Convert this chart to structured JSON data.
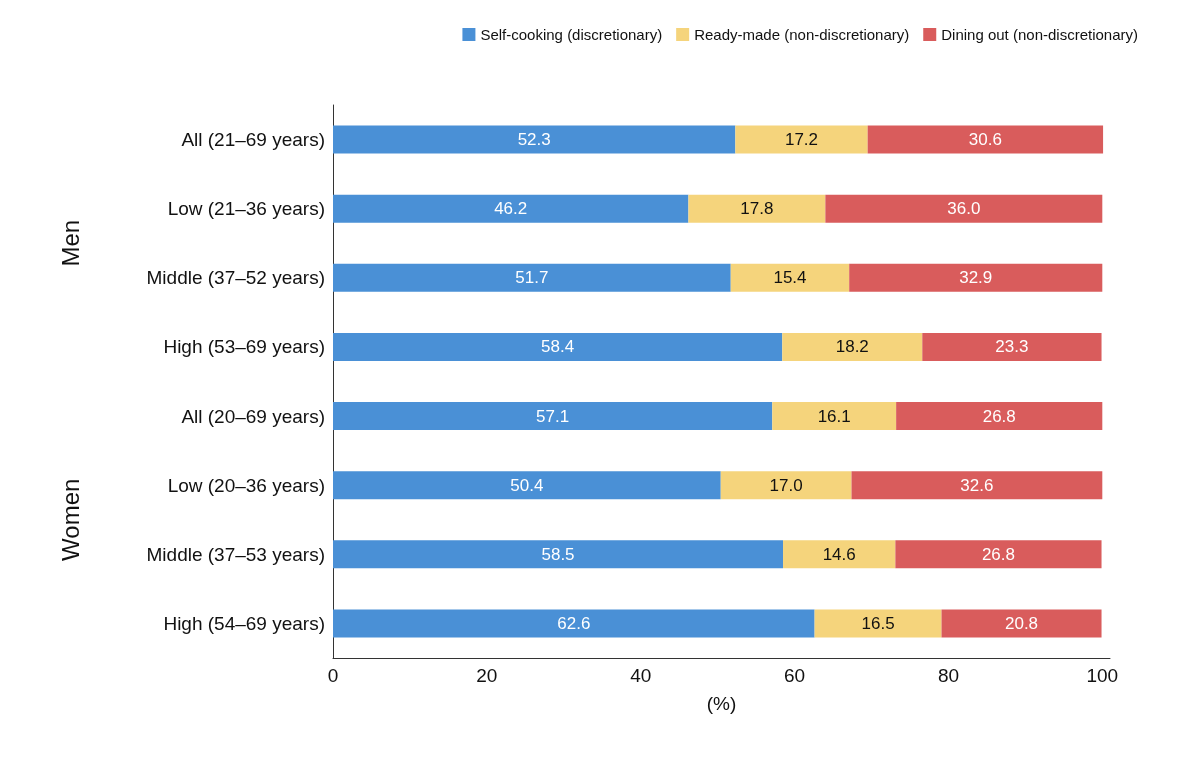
{
  "chart_data": {
    "type": "bar",
    "orientation": "horizontal",
    "stacked": true,
    "legend": "top right",
    "grid": false,
    "xlabel": "(%)",
    "categories": [
      "All (21–69 years)",
      "Low (21–36 years)",
      "Middle (37–52 years)",
      "High (53–69 years)",
      "All (20–69 years)",
      "Low (20–36 years)",
      "Middle (37–53 years)",
      "High (54–69 years)"
    ],
    "series": [
      {
        "name": "Self-cooking (discretionary)",
        "color": "#4a90d6",
        "values": [
          52.3,
          46.2,
          51.7,
          58.4,
          57.1,
          50.4,
          58.5,
          62.6
        ],
        "value_labels": [
          "52.3",
          "46.2",
          "51.7",
          "58.4",
          "57.1",
          "50.4",
          "58.5",
          "62.6"
        ]
      },
      {
        "name": "Ready-made (non-discretionary)",
        "color": "#f5d47c",
        "values": [
          17.2,
          17.8,
          15.4,
          18.2,
          16.1,
          17.0,
          14.6,
          16.5
        ],
        "value_labels": [
          "17.2",
          "17.8",
          "15.4",
          "18.2",
          "16.1",
          "17.0",
          "14.6",
          "16.5"
        ]
      },
      {
        "name": "Dining out (non-discretionary)",
        "color": "#d95c5c",
        "values": [
          30.6,
          36.0,
          32.9,
          23.3,
          26.8,
          32.6,
          26.8,
          20.8
        ],
        "value_labels": [
          "30.6",
          "36.0",
          "32.9",
          "23.3",
          "26.8",
          "32.6",
          "26.8",
          "20.8"
        ]
      }
    ],
    "xlim": [
      0,
      101
    ],
    "xticks": [
      0,
      20,
      40,
      60,
      80,
      100
    ],
    "annotations": [
      "Men",
      "Women"
    ]
  }
}
